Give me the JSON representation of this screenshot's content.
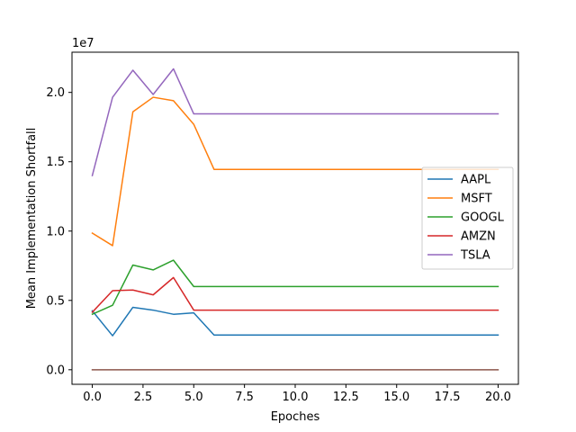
{
  "chart_data": {
    "type": "line",
    "xlabel": "Epoches",
    "ylabel": "Mean Implementation Shortfall",
    "offset_label": "1e7",
    "xlim": [
      -1,
      21
    ],
    "ylim": [
      -1.05,
      22.9
    ],
    "xticks": [
      0,
      2.5,
      5,
      7.5,
      10,
      12.5,
      15,
      17.5,
      20
    ],
    "xtick_labels": [
      "0.0",
      "2.5",
      "5.0",
      "7.5",
      "10.0",
      "12.5",
      "15.0",
      "17.5",
      "20.0"
    ],
    "yticks": [
      0,
      5,
      10,
      15,
      20
    ],
    "ytick_labels": [
      "0.0",
      "0.5",
      "1.0",
      "1.5",
      "2.0"
    ],
    "grid": false,
    "legend_position": "center-right",
    "x": [
      0,
      1,
      2,
      3,
      4,
      5,
      6,
      7,
      8,
      9,
      10,
      11,
      12,
      13,
      14,
      15,
      16,
      17,
      18,
      19,
      20
    ],
    "series": [
      {
        "name": "AAPL",
        "color": "#1f77b4",
        "values": [
          4.25,
          2.45,
          4.5,
          4.3,
          4.0,
          4.1,
          2.5,
          2.5,
          2.5,
          2.5,
          2.5,
          2.5,
          2.5,
          2.5,
          2.5,
          2.5,
          2.5,
          2.5,
          2.5,
          2.5,
          2.5
        ]
      },
      {
        "name": "MSFT",
        "color": "#ff7f0e",
        "values": [
          9.85,
          8.95,
          18.6,
          19.65,
          19.4,
          17.7,
          14.45,
          14.45,
          14.45,
          14.45,
          14.45,
          14.45,
          14.45,
          14.45,
          14.45,
          14.45,
          14.45,
          14.45,
          14.45,
          14.45,
          14.45
        ]
      },
      {
        "name": "GOOGL",
        "color": "#2ca02c",
        "values": [
          4.0,
          4.65,
          7.55,
          7.2,
          7.9,
          6.0,
          6.0,
          6.0,
          6.0,
          6.0,
          6.0,
          6.0,
          6.0,
          6.0,
          6.0,
          6.0,
          6.0,
          6.0,
          6.0,
          6.0,
          6.0
        ]
      },
      {
        "name": "AMZN",
        "color": "#d62728",
        "values": [
          4.15,
          5.7,
          5.75,
          5.4,
          6.65,
          4.3,
          4.3,
          4.3,
          4.3,
          4.3,
          4.3,
          4.3,
          4.3,
          4.3,
          4.3,
          4.3,
          4.3,
          4.3,
          4.3,
          4.3,
          4.3
        ]
      },
      {
        "name": "TSLA",
        "color": "#9467bd",
        "values": [
          14.0,
          19.65,
          21.6,
          19.85,
          21.7,
          18.45,
          18.45,
          18.45,
          18.45,
          18.45,
          18.45,
          18.45,
          18.45,
          18.45,
          18.45,
          18.45,
          18.45,
          18.45,
          18.45,
          18.45,
          18.45
        ]
      },
      {
        "color": "#8c564b",
        "values": [
          0,
          0,
          0,
          0,
          0,
          0,
          0,
          0,
          0,
          0,
          0,
          0,
          0,
          0,
          0,
          0,
          0,
          0,
          0,
          0,
          0
        ]
      }
    ]
  }
}
